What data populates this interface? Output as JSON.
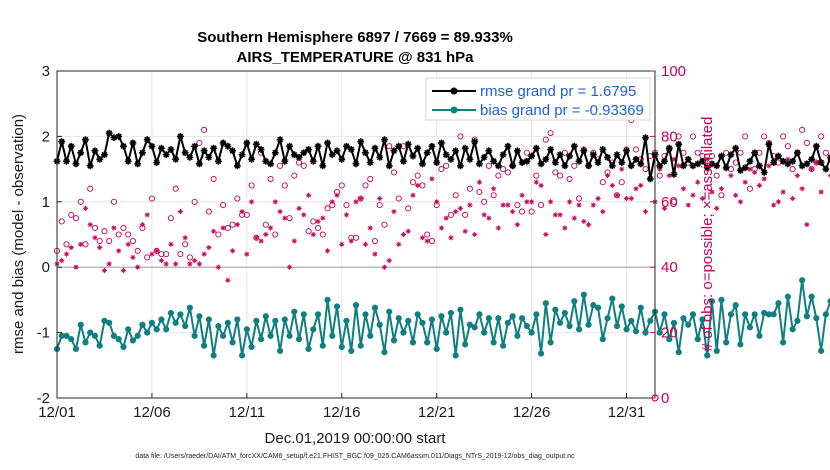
{
  "chart_data": {
    "type": "line",
    "title_line1": "Southern Hemisphere 6897 / 7669 = 89.933%",
    "title_line2": "AIRS_TEMPERATURE @ 831 hPa",
    "xlabel": "Dec.01,2019 00:00:00 start",
    "ylabel_left": "rmse and bias (model - observation)",
    "ylabel_right": "# of obs: o=possible; ×=assimilated",
    "footer": "data file: /Users/raeder/DAI/ATM_forcXX/CAM6_setup/f.e21.FHIST_BGC.f09_025.CAM6assim.011/Diags_NTrS_2019-12/obs_diag_output.nc",
    "xlim": [
      1,
      32.5
    ],
    "ylim_left": [
      -2,
      3
    ],
    "ylim_right": [
      0,
      100
    ],
    "x_ticks": [
      1,
      6,
      11,
      16,
      21,
      26,
      31
    ],
    "x_tick_labels": [
      "12/01",
      "12/06",
      "12/11",
      "12/16",
      "12/21",
      "12/26",
      "12/31"
    ],
    "y_ticks_left": [
      "-2",
      "-1",
      "0",
      "1",
      "2",
      "3"
    ],
    "y_ticks_right": [
      "0",
      "20",
      "40",
      "60",
      "80",
      "100"
    ],
    "x_start": 1,
    "x_step": 0.25,
    "colors": {
      "rmse": "#000000",
      "bias": "#0f7f80",
      "obs": "#c8005a",
      "legend_text": "#1f5fe0",
      "zero_line": "#bbbbbb"
    },
    "series": [
      {
        "name": "rmse grand pr = 1.6795",
        "legend": "rmse grand pr = 1.6795",
        "marker": "asterisk",
        "values": [
          1.62,
          1.92,
          1.62,
          1.85,
          1.58,
          1.75,
          1.95,
          1.55,
          1.78,
          1.65,
          1.72,
          2.05,
          1.98,
          2.0,
          1.85,
          1.62,
          1.9,
          1.58,
          1.75,
          1.95,
          1.85,
          1.6,
          1.82,
          1.72,
          1.8,
          1.65,
          2.0,
          1.75,
          1.68,
          1.85,
          1.58,
          1.78,
          1.68,
          1.82,
          1.62,
          1.9,
          1.85,
          1.78,
          1.55,
          1.72,
          1.9,
          1.65,
          1.88,
          1.8,
          1.62,
          1.58,
          1.75,
          1.95,
          1.62,
          1.85,
          1.72,
          1.68,
          1.75,
          1.8,
          1.62,
          1.85,
          1.55,
          1.9,
          1.72,
          1.78,
          1.65,
          1.85,
          1.8,
          1.58,
          1.92,
          1.75,
          1.6,
          1.82,
          1.68,
          1.95,
          1.55,
          1.78,
          1.85,
          1.62,
          1.88,
          1.7,
          1.82,
          1.58,
          1.75,
          1.85,
          1.6,
          1.9,
          1.72,
          1.65,
          1.78,
          1.55,
          1.82,
          1.65,
          1.92,
          1.58,
          1.68,
          1.78,
          1.62,
          1.55,
          1.72,
          1.85,
          1.55,
          1.78,
          1.6,
          1.62,
          1.7,
          1.82,
          1.58,
          1.65,
          1.8,
          1.6,
          1.72,
          1.55,
          1.7,
          1.85,
          1.62,
          1.78,
          1.55,
          1.72,
          1.6,
          1.8,
          1.68,
          1.55,
          1.72,
          1.6,
          1.78,
          1.55,
          1.65,
          1.58,
          1.98,
          1.35,
          1.72,
          1.55,
          1.62,
          1.82,
          1.42,
          1.88,
          1.55,
          1.65,
          1.55,
          1.58,
          1.62,
          1.52,
          1.58,
          1.55,
          1.7,
          1.52,
          1.72,
          1.82,
          1.48,
          1.52,
          1.62,
          1.75,
          1.55,
          1.45,
          1.88,
          1.6,
          1.7,
          1.62,
          1.58,
          1.62,
          1.75,
          1.55,
          1.58,
          1.65,
          1.85,
          1.6,
          1.5,
          1.68,
          1.58,
          1.72,
          1.52,
          1.62,
          1.6,
          1.9,
          1.48,
          1.72,
          1.62,
          1.68,
          1.6,
          1.32,
          1.75,
          1.5,
          1.85,
          1.62,
          1.55,
          1.8,
          1.5,
          1.58,
          1.72,
          1.62,
          1.52,
          1.58,
          1.48,
          1.56,
          1.6,
          1.55,
          1.58,
          1.52,
          1.58
        ]
      },
      {
        "name": "bias grand pr = -0.93369",
        "legend": "bias grand pr = -0.93369",
        "marker": "circle",
        "values": [
          -1.25,
          -1.05,
          -1.05,
          -1.1,
          -1.25,
          -0.88,
          -1.15,
          -1.0,
          -1.05,
          -1.2,
          -0.82,
          -0.85,
          -1.05,
          -1.1,
          -1.22,
          -0.95,
          -1.12,
          -1.05,
          -0.88,
          -1.0,
          -0.85,
          -0.95,
          -0.8,
          -0.95,
          -0.7,
          -0.85,
          -0.72,
          -0.9,
          -0.62,
          -1.05,
          -0.75,
          -1.2,
          -0.8,
          -1.35,
          -0.9,
          -1.05,
          -0.85,
          -1.15,
          -0.8,
          -1.35,
          -0.95,
          -1.22,
          -0.82,
          -1.1,
          -0.75,
          -1.05,
          -0.82,
          -1.28,
          -0.8,
          -1.05,
          -0.68,
          -1.1,
          -0.72,
          -1.25,
          -0.95,
          -0.72,
          -1.2,
          -0.5,
          -1.05,
          -0.6,
          -1.22,
          -0.82,
          -1.28,
          -0.58,
          -1.2,
          -0.72,
          -1.05,
          -0.62,
          -0.88,
          -1.3,
          -0.68,
          -1.12,
          -0.78,
          -1.0,
          -0.82,
          -1.15,
          -0.72,
          -0.85,
          -1.15,
          -0.8,
          -1.25,
          -0.75,
          -1.0,
          -0.7,
          -1.35,
          -0.65,
          -1.18,
          -0.88,
          -0.92,
          -0.72,
          -1.0,
          -0.78,
          -1.15,
          -0.78,
          -1.2,
          -0.85,
          -0.75,
          -1.05,
          -0.78,
          -0.9,
          -1.0,
          -0.72,
          -1.32,
          -0.55,
          -1.15,
          -0.65,
          -0.85,
          -0.7,
          -0.9,
          -0.52,
          -0.95,
          -0.42,
          -0.88,
          -0.58,
          -0.62,
          -1.1,
          -0.78,
          -0.48,
          -0.9,
          -0.6,
          -0.95,
          -0.82,
          -0.98,
          -0.62,
          -1.0,
          -0.82,
          -0.68,
          -1.0,
          -0.72,
          -1.1,
          -0.85,
          -1.3,
          -0.78,
          -0.88,
          -0.72,
          -1.1,
          -0.8,
          -1.35,
          -0.52,
          -1.28,
          -0.5,
          -1.15,
          -0.72,
          -0.58,
          -1.18,
          -0.72,
          -0.92,
          -0.72,
          -1.05,
          -0.7,
          -0.72,
          -0.72,
          -0.55,
          -1.15,
          -0.45,
          -0.95,
          -0.82,
          -0.2,
          -0.75,
          -0.45,
          -0.78,
          -1.28,
          -0.72,
          -0.52,
          -1.05,
          -0.6,
          -1.35,
          -0.85,
          -1.6,
          -0.82,
          -0.68,
          -1.45,
          -0.58,
          -0.88,
          -1.0,
          -0.65,
          -1.1,
          -0.75,
          -0.58,
          -1.25,
          -0.68,
          -1.38,
          -0.92,
          -0.8,
          -0.7,
          -0.45,
          -0.78,
          -0.85,
          -1.08,
          -0.7,
          -0.92,
          -0.72,
          -0.95,
          -0.85,
          -0.78
        ]
      },
      {
        "name": "obs possible",
        "marker": "open-circle",
        "axis": "right",
        "values": [
          45,
          54,
          47,
          56,
          55,
          60,
          47,
          64,
          52,
          48,
          51,
          48,
          60,
          50,
          52,
          50,
          48,
          45,
          52,
          43,
          61,
          45,
          44,
          44,
          55,
          64,
          44,
          47,
          43,
          60,
          78,
          82,
          57,
          67,
          50,
          59,
          52,
          53,
          61,
          56,
          56,
          65,
          49,
          75,
          53,
          67,
          50,
          71,
          65,
          55,
          68,
          72,
          71,
          51,
          54,
          52,
          50,
          58,
          59,
          63,
          65,
          59,
          49,
          49,
          61,
          65,
          67,
          48,
          59,
          53,
          77,
          69,
          61,
          77,
          58,
          66,
          68,
          65,
          50,
          48,
          59,
          70,
          71,
          56,
          62,
          80,
          56,
          64,
          79,
          63,
          60,
          71,
          62,
          68,
          70,
          69,
          71,
          59,
          57,
          75,
          57,
          68,
          59,
          79,
          81,
          69,
          68,
          75,
          67,
          71,
          61,
          76,
          71,
          75,
          73,
          66,
          69,
          72,
          62,
          66,
          76,
          85,
          76,
          73,
          70,
          74,
          75,
          68,
          74,
          76,
          60,
          80,
          75,
          72,
          80,
          75,
          74,
          71,
          74,
          68,
          62,
          75,
          70,
          72,
          75,
          80,
          64,
          70,
          75,
          80,
          78,
          74,
          72,
          80,
          77,
          70,
          75,
          82,
          78,
          70,
          72,
          80,
          75,
          73,
          76,
          71,
          75,
          81,
          74,
          69,
          73,
          77,
          68,
          79,
          73,
          75,
          82,
          72,
          74,
          77,
          69,
          75,
          70,
          71,
          72,
          79,
          75,
          78,
          74,
          76,
          80,
          72,
          77,
          74,
          82
        ]
      },
      {
        "name": "obs assimilated",
        "marker": "asterisk",
        "axis": "right",
        "values": [
          41,
          42,
          44,
          46,
          40,
          47,
          58,
          53,
          49,
          46,
          39,
          41,
          52,
          45,
          39,
          47,
          43,
          40,
          53,
          56,
          44,
          45,
          42,
          41,
          47,
          41,
          57,
          49,
          41,
          42,
          41,
          44,
          46,
          51,
          40,
          52,
          36,
          45,
          53,
          57,
          44,
          60,
          49,
          48,
          50,
          52,
          60,
          57,
          55,
          40,
          48,
          58,
          56,
          62,
          50,
          54,
          55,
          45,
          60,
          62,
          47,
          56,
          48,
          60,
          61,
          47,
          52,
          44,
          61,
          40,
          42,
          57,
          47,
          50,
          51,
          62,
          65,
          49,
          48,
          67,
          60,
          52,
          55,
          49,
          57,
          58,
          51,
          59,
          50,
          66,
          56,
          55,
          64,
          52,
          59,
          59,
          57,
          53,
          62,
          60,
          60,
          66,
          65,
          50,
          60,
          56,
          56,
          52,
          60,
          55,
          59,
          54,
          53,
          59,
          61,
          57,
          68,
          65,
          62,
          70,
          61,
          61,
          64,
          65,
          57,
          67,
          60,
          70,
          58,
          68,
          73,
          71,
          64,
          59,
          62,
          66,
          61,
          73,
          63,
          58,
          64,
          71,
          68,
          62,
          60,
          66,
          70,
          69,
          65,
          67,
          71,
          59,
          60,
          63,
          73,
          61,
          68,
          64,
          53,
          70,
          72,
          63,
          70,
          68,
          61,
          73,
          66,
          67,
          67,
          58,
          70,
          66,
          58,
          70,
          69,
          61,
          63,
          68,
          66,
          70,
          66,
          72,
          64,
          58,
          71,
          68,
          56,
          74,
          75,
          70,
          67,
          68,
          74,
          67,
          72
        ]
      }
    ]
  }
}
